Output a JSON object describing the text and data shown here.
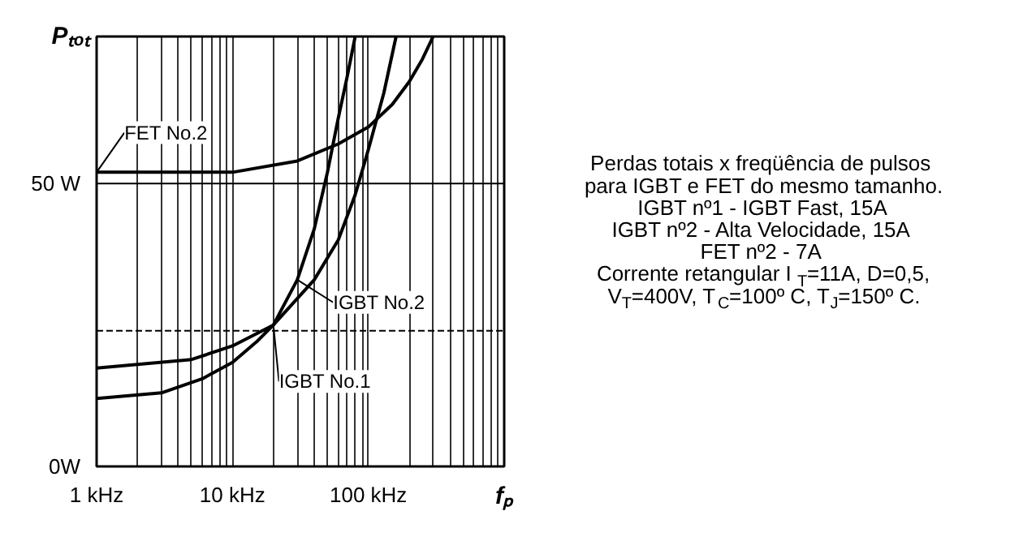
{
  "chart_data": {
    "type": "line",
    "xlabel": "fₚ",
    "ylabel": "Pₜₒₜ",
    "log": "x",
    "grid": "x",
    "marker": "none",
    "line_style": "solid",
    "xlim": [
      1,
      1000
    ],
    "ylim": [
      0,
      76
    ],
    "xticks": [
      {
        "value": 1,
        "label": "1 kHz"
      },
      {
        "value": 2,
        "label": null
      },
      {
        "value": 3,
        "label": null
      },
      {
        "value": 4,
        "label": null
      },
      {
        "value": 5,
        "label": null
      },
      {
        "value": 6,
        "label": null
      },
      {
        "value": 7,
        "label": null
      },
      {
        "value": 8,
        "label": null
      },
      {
        "value": 9,
        "label": null
      },
      {
        "value": 10,
        "label": "10 kHz"
      },
      {
        "value": 20,
        "label": null
      },
      {
        "value": 30,
        "label": null
      },
      {
        "value": 40,
        "label": null
      },
      {
        "value": 50,
        "label": null
      },
      {
        "value": 60,
        "label": null
      },
      {
        "value": 70,
        "label": null
      },
      {
        "value": 80,
        "label": null
      },
      {
        "value": 90,
        "label": null
      },
      {
        "value": 100,
        "label": "100 kHz"
      },
      {
        "value": 200,
        "label": null
      },
      {
        "value": 300,
        "label": null
      },
      {
        "value": 400,
        "label": null
      },
      {
        "value": 500,
        "label": null
      },
      {
        "value": 600,
        "label": null
      },
      {
        "value": 700,
        "label": null
      },
      {
        "value": 800,
        "label": null
      },
      {
        "value": 900,
        "label": null
      }
    ],
    "yticks": [
      {
        "value": 0,
        "label": "0W"
      },
      {
        "value": 50,
        "label": "50 W"
      }
    ],
    "ref_lines": [
      {
        "axis": "y",
        "value": 50,
        "line_style": "solid",
        "color": "#000000"
      },
      {
        "axis": "y",
        "value": 24,
        "line_style": "dashed",
        "color": "#000000"
      }
    ],
    "series": [
      {
        "name": "FET No.2",
        "color": "#000000",
        "x": [
          1,
          5,
          10,
          30,
          60,
          100,
          150,
          200,
          250,
          300
        ],
        "values": [
          52,
          52,
          52,
          54,
          57,
          60,
          64,
          68,
          72,
          76
        ]
      },
      {
        "name": "IGBT No.1",
        "color": "#000000",
        "x": [
          1,
          5,
          10,
          20,
          40,
          60,
          80,
          100,
          130,
          160
        ],
        "values": [
          17.4,
          18.9,
          21.3,
          25,
          33,
          40,
          48,
          56,
          66,
          76
        ]
      },
      {
        "name": "IGBT No.2",
        "color": "#000000",
        "x": [
          1,
          3,
          6,
          10,
          15,
          20,
          30,
          40,
          50,
          60,
          70,
          80
        ],
        "values": [
          12,
          13,
          15.5,
          18.4,
          22,
          25,
          33,
          42,
          52,
          61.5,
          69,
          76
        ]
      }
    ],
    "annotations": [
      "Perdas totais x freqüência de pulsos",
      "para IGBT e FET do mesmo tamanho.",
      "IGBT nº1 - IGBT Fast, 15A",
      "IGBT nº2 - Alta Velocidade, 15A",
      "FET nº2 - 7A",
      "Corrente retangular  I$_{T}$=11A, D=0,5,",
      "V$_{T}$=400V, T$_{C}$=100º C, T$_{J}$=150º C."
    ]
  }
}
